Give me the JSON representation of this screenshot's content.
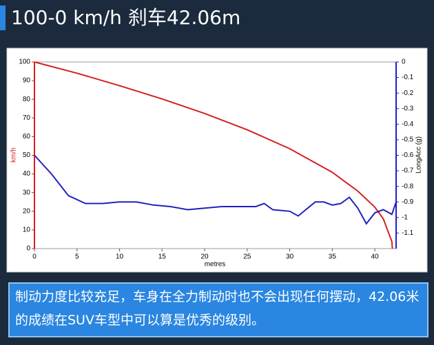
{
  "header": {
    "title": "100-0 km/h 刹车42.06m"
  },
  "chart_data": {
    "type": "line",
    "xlabel": "metres",
    "ylabel": "km/h",
    "y2label": "LongAcc (g)",
    "xlim": [
      0,
      42.5
    ],
    "xticks": [
      0,
      5,
      10,
      15,
      20,
      25,
      30,
      35,
      40
    ],
    "ylim": [
      0,
      100
    ],
    "yticks": [
      0,
      10,
      20,
      30,
      40,
      50,
      60,
      70,
      80,
      90,
      100
    ],
    "y2lim": [
      -1.2,
      0
    ],
    "y2ticks": [
      0,
      -0.1,
      -0.2,
      -0.3,
      -0.4,
      -0.5,
      -0.6,
      -0.7,
      -0.8,
      -0.9,
      -1,
      -1.1
    ],
    "series": [
      {
        "color": "#d42020",
        "x": [
          0,
          5,
          10,
          15,
          20,
          25,
          30,
          35,
          38,
          40,
          41,
          42,
          42.06
        ],
        "values": [
          100,
          94,
          87.3,
          80.2,
          72.4,
          63.7,
          53.5,
          40.9,
          30.8,
          22.2,
          15.9,
          3.8,
          0
        ]
      },
      {
        "color": "#2020c0",
        "axis": "y2",
        "x": [
          0,
          2,
          4,
          6,
          8,
          10,
          12,
          14,
          16,
          18,
          20,
          22,
          24,
          26,
          27,
          28,
          30,
          31,
          33,
          34,
          35,
          36,
          37,
          38,
          39,
          40,
          41,
          42,
          42.5
        ],
        "values": [
          -0.6,
          -0.72,
          -0.86,
          -0.91,
          -0.91,
          -0.9,
          -0.9,
          -0.92,
          -0.93,
          -0.95,
          -0.94,
          -0.93,
          -0.93,
          -0.93,
          -0.91,
          -0.95,
          -0.96,
          -0.99,
          -0.9,
          -0.9,
          -0.92,
          -0.91,
          -0.87,
          -0.94,
          -1.04,
          -0.97,
          -0.95,
          -0.98,
          -0.9
        ]
      }
    ]
  },
  "caption": "制动力度比较充足，车身在全力制动时也不会出现任何摆动，42.06米的成绩在SUV车型中可以算是优秀的级别。"
}
